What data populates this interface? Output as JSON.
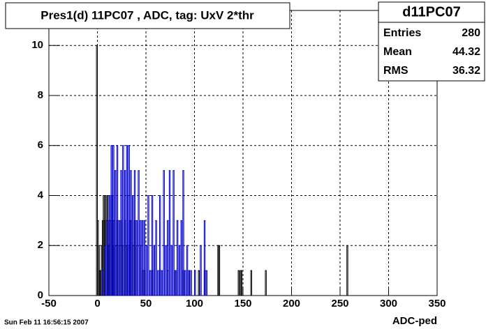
{
  "chart_data": {
    "type": "histogram",
    "title": "Pres1(d) 11PC07 , ADC, tag: UxV 2*thr",
    "x_label": "ADC-ped",
    "footer": "Sun Feb 11 16:56:15 2007",
    "stats": {
      "name": "d11PC07",
      "rows": [
        {
          "label": "Entries",
          "value": 280
        },
        {
          "label": "Mean",
          "value": 44.32
        },
        {
          "label": "RMS",
          "value": 36.32
        }
      ]
    },
    "xlim": [
      -50,
      350
    ],
    "xticks": [
      -50,
      0,
      50,
      100,
      150,
      200,
      250,
      300,
      350
    ],
    "ylim": [
      0,
      11.4
    ],
    "yticks": [
      0,
      2,
      4,
      6,
      8,
      10
    ],
    "grid": true,
    "series": [
      {
        "color": "#000000",
        "x": [
          -1,
          0,
          1,
          2,
          3,
          4,
          5,
          6,
          7,
          8,
          9,
          10,
          11,
          12,
          13,
          14,
          15,
          16,
          17,
          18,
          20,
          22,
          24,
          26,
          28,
          30,
          32,
          34,
          36,
          38,
          40,
          44,
          46,
          48,
          56,
          64,
          72,
          80,
          88,
          94,
          100,
          104,
          110,
          124,
          125,
          145,
          147,
          148,
          158,
          173,
          257
        ],
        "values": [
          10,
          3,
          2,
          1,
          1,
          2,
          3,
          4,
          3,
          4,
          3,
          4,
          2,
          3,
          3,
          4,
          3,
          2,
          3,
          2,
          3,
          2,
          3,
          2,
          3,
          2,
          2,
          3,
          2,
          3,
          2,
          2,
          1,
          1,
          1,
          1,
          1,
          1,
          1,
          1,
          1,
          1,
          1,
          2,
          2,
          1,
          1,
          1,
          1,
          1,
          2
        ]
      },
      {
        "color": "#0000cc",
        "x": [
          5,
          8,
          10,
          12,
          14,
          15,
          16,
          18,
          20,
          22,
          24,
          26,
          28,
          30,
          31,
          32,
          33,
          34,
          36,
          38,
          40,
          42,
          44,
          46,
          48,
          50,
          52,
          54,
          56,
          58,
          60,
          62,
          64,
          66,
          68,
          70,
          72,
          74,
          76,
          78,
          80,
          82,
          84,
          86,
          88,
          90,
          92,
          94,
          96,
          100,
          106,
          110,
          112
        ],
        "values": [
          1,
          2,
          3,
          4,
          6,
          4,
          6,
          5,
          6,
          3,
          5,
          6,
          5,
          6,
          4,
          6,
          3,
          5,
          4,
          5,
          3,
          5,
          3,
          3,
          3,
          2,
          4,
          1,
          4,
          2,
          3,
          1,
          4,
          1,
          5,
          2,
          3,
          5,
          2,
          5,
          1,
          3,
          2,
          3,
          5,
          1,
          2,
          1,
          1,
          1,
          2,
          3,
          1
        ]
      }
    ]
  }
}
